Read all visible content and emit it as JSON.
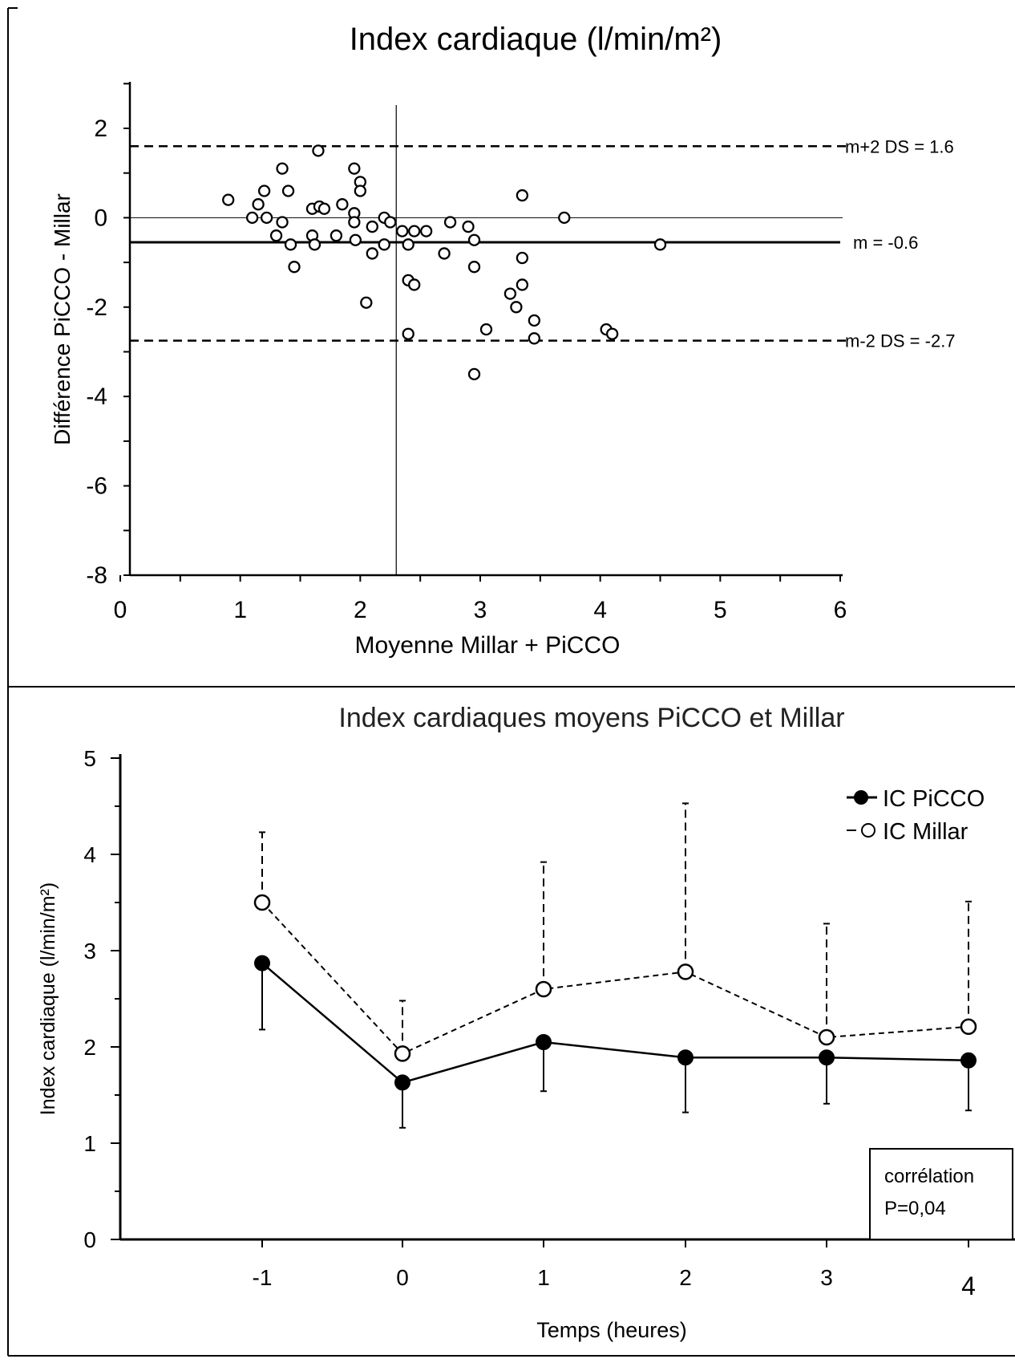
{
  "chart_data": [
    {
      "type": "scatter",
      "title": "Index cardiaque (l/min/m²)",
      "xlabel": "Moyenne Millar + PiCCO",
      "ylabel": "Différence PiCCO - Millar",
      "xlim": [
        0,
        6
      ],
      "ylim": [
        -8,
        3
      ],
      "xticks": [
        "0",
        "1",
        "2",
        "3",
        "4",
        "5",
        "6"
      ],
      "yticks": [
        "2",
        "0",
        "-2",
        "-4",
        "-6",
        "-8"
      ],
      "reference_lines": [
        {
          "y": 1.6,
          "style": "dashed",
          "label": "m+2 DS = 1.6"
        },
        {
          "y": -0.55,
          "style": "solid",
          "label": "m = -0.6"
        },
        {
          "y": -2.75,
          "style": "dashed",
          "label": "m-2 DS = -2.7"
        },
        {
          "y": 0,
          "style": "thin",
          "label": ""
        }
      ],
      "vertical_line_x": 2.3,
      "points": [
        [
          0.9,
          0.4
        ],
        [
          1.1,
          0.0
        ],
        [
          1.15,
          0.3
        ],
        [
          1.2,
          0.6
        ],
        [
          1.22,
          0.0
        ],
        [
          1.3,
          -0.4
        ],
        [
          1.35,
          1.1
        ],
        [
          1.35,
          -0.1
        ],
        [
          1.4,
          0.6
        ],
        [
          1.42,
          -0.6
        ],
        [
          1.45,
          -1.1
        ],
        [
          1.6,
          0.2
        ],
        [
          1.6,
          -0.4
        ],
        [
          1.62,
          -0.6
        ],
        [
          1.65,
          1.5
        ],
        [
          1.66,
          0.25
        ],
        [
          1.7,
          0.2
        ],
        [
          1.8,
          -0.4
        ],
        [
          1.85,
          0.3
        ],
        [
          1.95,
          0.1
        ],
        [
          1.95,
          -0.1
        ],
        [
          1.95,
          1.1
        ],
        [
          1.96,
          -0.5
        ],
        [
          2.0,
          0.8
        ],
        [
          2.0,
          0.6
        ],
        [
          2.05,
          -1.9
        ],
        [
          2.1,
          -0.2
        ],
        [
          2.1,
          -0.8
        ],
        [
          2.2,
          0.0
        ],
        [
          2.2,
          -0.6
        ],
        [
          2.25,
          -0.1
        ],
        [
          2.35,
          -0.3
        ],
        [
          2.4,
          -0.6
        ],
        [
          2.4,
          -1.4
        ],
        [
          2.4,
          -2.6
        ],
        [
          2.45,
          -0.3
        ],
        [
          2.45,
          -1.5
        ],
        [
          2.55,
          -0.3
        ],
        [
          2.7,
          -0.8
        ],
        [
          2.75,
          -0.1
        ],
        [
          2.9,
          -0.2
        ],
        [
          2.95,
          -0.5
        ],
        [
          2.95,
          -1.1
        ],
        [
          2.95,
          -3.5
        ],
        [
          3.05,
          -2.5
        ],
        [
          3.25,
          -1.7
        ],
        [
          3.3,
          -2.0
        ],
        [
          3.35,
          -1.5
        ],
        [
          3.35,
          -0.9
        ],
        [
          3.35,
          0.5
        ],
        [
          3.45,
          -2.3
        ],
        [
          3.45,
          -2.7
        ],
        [
          3.7,
          0.0
        ],
        [
          4.05,
          -2.5
        ],
        [
          4.1,
          -2.6
        ],
        [
          4.5,
          -0.6
        ]
      ]
    },
    {
      "type": "line",
      "title": "Index cardiaques moyens PiCCO et Millar",
      "xlabel": "Temps (heures)",
      "ylabel": "Index cardiaque (l/min/m²)",
      "x": [
        -1,
        0,
        1,
        2,
        3,
        4
      ],
      "xticks": [
        "-1",
        "0",
        "1",
        "2",
        "3",
        "4"
      ],
      "yticks": [
        "0",
        "1",
        "2",
        "3",
        "4",
        "5"
      ],
      "ylim": [
        0,
        5
      ],
      "legend_position": "top-right",
      "series": [
        {
          "name": "IC PiCCO",
          "marker": "filled",
          "line": "solid",
          "color": "#000000",
          "values": [
            2.87,
            1.63,
            2.05,
            1.89,
            1.89,
            1.86
          ],
          "error_lower": [
            2.18,
            1.16,
            1.54,
            1.32,
            1.41,
            1.34
          ]
        },
        {
          "name": "IC Millar",
          "marker": "open",
          "line": "dashed",
          "color": "#000000",
          "values": [
            3.5,
            1.93,
            2.6,
            2.78,
            2.1,
            2.21
          ],
          "error_upper": [
            4.23,
            2.48,
            3.92,
            4.53,
            3.28,
            3.51
          ]
        }
      ],
      "annotation": {
        "line1": "corrélation",
        "line2": "P=0,04"
      }
    }
  ]
}
